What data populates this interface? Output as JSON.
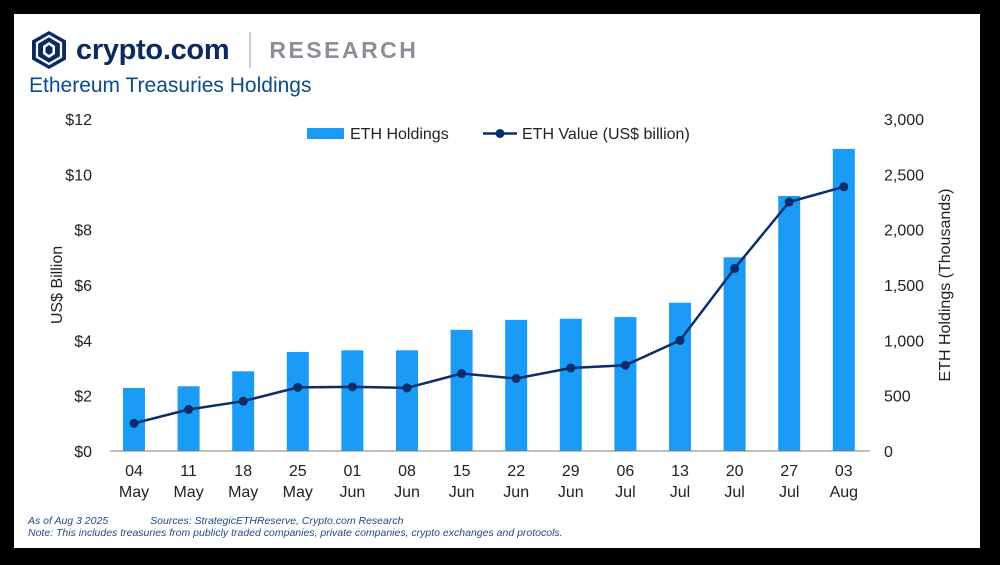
{
  "brand": {
    "name": "crypto.com",
    "section": "RESEARCH"
  },
  "colors": {
    "bar": "#1a9bf5",
    "line": "#0b2d6b",
    "title": "#0b4a8c",
    "text": "#222222"
  },
  "chart_data": {
    "type": "bar+line",
    "title": "Ethereum Treasuries Holdings",
    "categories": [
      "04 May",
      "11 May",
      "18 May",
      "25 May",
      "01 Jun",
      "08 Jun",
      "15 Jun",
      "22 Jun",
      "29 Jun",
      "06 Jul",
      "13 Jul",
      "20 Jul",
      "27 Jul",
      "03 Aug"
    ],
    "ylabel_left": "US$ Billion",
    "ylabel_right": "ETH Holdings (Thousands)",
    "yticks_left": [
      "$0",
      "$2",
      "$4",
      "$6",
      "$8",
      "$10",
      "$12"
    ],
    "yticks_right": [
      "0",
      "500",
      "1,000",
      "1,500",
      "2,000",
      "2,500",
      "3,000"
    ],
    "ylim_left": [
      0,
      12
    ],
    "ylim_right": [
      0,
      3000
    ],
    "series": [
      {
        "name": "ETH Holdings",
        "type": "bar",
        "axis": "right",
        "values": [
          570,
          585,
          720,
          895,
          910,
          910,
          1095,
          1185,
          1195,
          1210,
          1340,
          1750,
          2305,
          2730
        ]
      },
      {
        "name": "ETH Value (US$ billion)",
        "type": "line",
        "axis": "left",
        "values": [
          1.0,
          1.5,
          1.8,
          2.3,
          2.32,
          2.28,
          2.8,
          2.62,
          3.0,
          3.1,
          4.0,
          6.6,
          9.0,
          9.55
        ]
      }
    ],
    "legend": "top-center",
    "grid": false
  },
  "footnote": {
    "date": "As of Aug 3 2025",
    "sources": "Sources: StrategicETHReserve, Crypto.com Research",
    "note": "Note: This includes treasuries from publicly traded companies, private companies, crypto exchanges and protocols."
  }
}
